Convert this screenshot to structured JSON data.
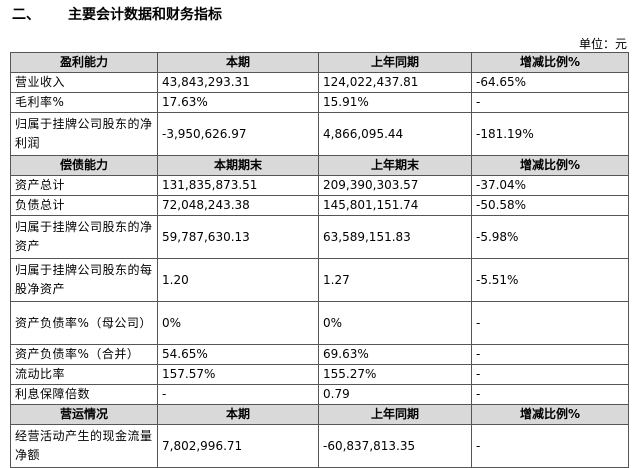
{
  "heading": {
    "number": "二、",
    "title": "主要会计数据和财务指标"
  },
  "unit": "单位：元",
  "sections": [
    {
      "header": [
        "盈利能力",
        "本期",
        "上年同期",
        "增减比例%"
      ],
      "rows": [
        [
          "营业收入",
          "43,843,293.31",
          "124,022,437.81",
          "-64.65%"
        ],
        [
          "毛利率%",
          "17.63%",
          "15.91%",
          "-"
        ],
        [
          "归属于挂牌公司股东的净利润",
          "-3,950,626.97",
          "4,866,095.44",
          "-181.19%"
        ]
      ]
    },
    {
      "header": [
        "偿债能力",
        "本期期末",
        "上年期末",
        "增减比例%"
      ],
      "rows": [
        [
          "资产总计",
          "131,835,873.51",
          "209,390,303.57",
          "-37.04%"
        ],
        [
          "负债总计",
          "72,048,243.38",
          "145,801,151.74",
          "-50.58%"
        ],
        [
          "归属于挂牌公司股东的净资产",
          "59,787,630.13",
          "63,589,151.83",
          "-5.98%"
        ],
        [
          "归属于挂牌公司股东的每股净资产",
          "1.20",
          "1.27",
          "-5.51%"
        ],
        [
          "资产负债率%（母公司）",
          "0%",
          "0%",
          "-"
        ],
        [
          "资产负债率%（合并）",
          "54.65%",
          "69.63%",
          "-"
        ],
        [
          "流动比率",
          "157.57%",
          "155.27%",
          "-"
        ],
        [
          "利息保障倍数",
          "-",
          "0.79",
          "-"
        ]
      ]
    },
    {
      "header": [
        "营运情况",
        "本期",
        "上年同期",
        "增减比例%"
      ],
      "rows": [
        [
          "经营活动产生的现金流量净额",
          "7,802,996.71",
          "-60,837,813.35",
          "-"
        ]
      ]
    }
  ]
}
